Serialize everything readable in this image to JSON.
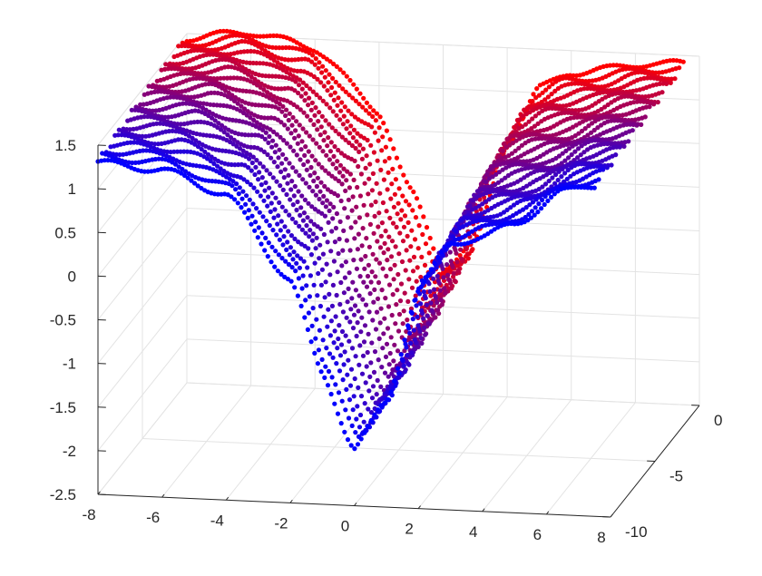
{
  "chart_data": {
    "type": "scatter",
    "subtype": "3d-point-cloud",
    "title": "",
    "xlabel": "",
    "ylabel": "",
    "zlabel": "",
    "xlim": [
      -8,
      8
    ],
    "ylim": [
      -10,
      0
    ],
    "zlim": [
      -2.5,
      1.5
    ],
    "x_ticks": [
      "-8",
      "-6",
      "-4",
      "-2",
      "0",
      "2",
      "4",
      "6",
      "8"
    ],
    "y_ticks": [
      "0",
      "-5",
      "-10"
    ],
    "z_ticks": [
      "1.5",
      "1",
      "0.5",
      "0",
      "-0.5",
      "-1",
      "-1.5",
      "-2",
      "-2.5"
    ],
    "grid": true,
    "legend": "none",
    "colormap": {
      "front_color": "#0000ff",
      "back_color": "#ff0000"
    },
    "series": [
      {
        "y": -10,
        "points": [
          [
            -8,
            1.3
          ],
          [
            -6,
            1.25
          ],
          [
            -4,
            1.0
          ],
          [
            -2,
            0.05
          ],
          [
            -1,
            -1.0
          ],
          [
            0,
            -1.85
          ],
          [
            1,
            -1.3
          ],
          [
            2,
            0.0
          ],
          [
            3,
            0.55
          ],
          [
            4,
            0.65
          ],
          [
            5,
            0.8
          ],
          [
            6.5,
            1.2
          ],
          [
            7.5,
            1.3
          ]
        ]
      },
      {
        "y": -5,
        "points": [
          [
            -8,
            1.4
          ],
          [
            -6,
            1.45
          ],
          [
            -4,
            1.2
          ],
          [
            -2,
            0.35
          ],
          [
            -1,
            -0.6
          ],
          [
            0,
            -1.45
          ],
          [
            1,
            -1.05
          ],
          [
            2,
            0.2
          ],
          [
            3,
            0.8
          ],
          [
            4,
            0.95
          ],
          [
            5,
            1.05
          ],
          [
            6.5,
            1.3
          ],
          [
            7.5,
            1.35
          ]
        ]
      },
      {
        "y": 0,
        "points": [
          [
            -8,
            1.45
          ],
          [
            -6,
            1.55
          ],
          [
            -4,
            1.4
          ],
          [
            -2,
            0.7
          ],
          [
            -1,
            -0.2
          ],
          [
            0,
            -1.05
          ],
          [
            1,
            -0.75
          ],
          [
            2,
            0.4
          ],
          [
            3,
            1.05
          ],
          [
            4,
            1.25
          ],
          [
            5,
            1.3
          ],
          [
            6.5,
            1.4
          ],
          [
            7.5,
            1.4
          ]
        ]
      }
    ]
  }
}
